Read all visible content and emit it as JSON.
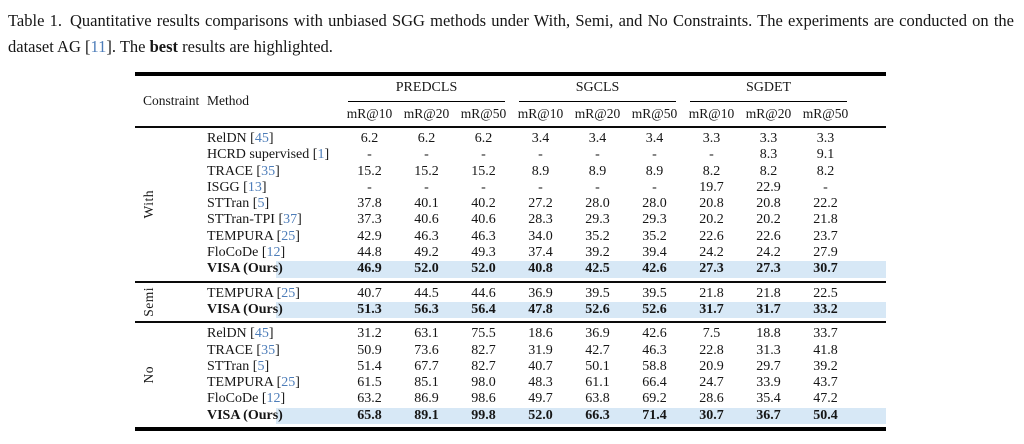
{
  "caption": {
    "label": "Table 1.",
    "text_before_cite": "Quantitative results comparisons with unbiased SGG methods under With, Semi, and No Constraints.  The experiments are conducted on the dataset AG",
    "cite": "11",
    "text_after_cite": ". The",
    "bold_word": "best",
    "text_end": "results are highlighted."
  },
  "colors": {
    "highlight": "#d7e8f6",
    "cite_blue": "#4d7db9"
  },
  "table": {
    "header": {
      "constraint": "Constraint",
      "method": "Method",
      "task_groups": [
        "PREDCLS",
        "SGCLS",
        "SGDET"
      ],
      "metrics": [
        "mR@10",
        "mR@20",
        "mR@50"
      ]
    },
    "groups": [
      {
        "constraint": "With",
        "rows": [
          {
            "method": "RelDN",
            "cite": "45",
            "highlight": false,
            "values": [
              "6.2",
              "6.2",
              "6.2",
              "3.4",
              "3.4",
              "3.4",
              "3.3",
              "3.3",
              "3.3"
            ]
          },
          {
            "method": "HCRD supervised",
            "cite": "1",
            "highlight": false,
            "values": [
              "-",
              "-",
              "-",
              "-",
              "-",
              "-",
              "-",
              "8.3",
              "9.1"
            ]
          },
          {
            "method": "TRACE",
            "cite": "35",
            "highlight": false,
            "values": [
              "15.2",
              "15.2",
              "15.2",
              "8.9",
              "8.9",
              "8.9",
              "8.2",
              "8.2",
              "8.2"
            ]
          },
          {
            "method": "ISGG",
            "cite": "13",
            "highlight": false,
            "values": [
              "-",
              "-",
              "-",
              "-",
              "-",
              "-",
              "19.7",
              "22.9",
              "-"
            ]
          },
          {
            "method": "STTran",
            "cite": "5",
            "highlight": false,
            "values": [
              "37.8",
              "40.1",
              "40.2",
              "27.2",
              "28.0",
              "28.0",
              "20.8",
              "20.8",
              "22.2"
            ]
          },
          {
            "method": "STTran-TPI",
            "cite": "37",
            "highlight": false,
            "values": [
              "37.3",
              "40.6",
              "40.6",
              "28.3",
              "29.3",
              "29.3",
              "20.2",
              "20.2",
              "21.8"
            ]
          },
          {
            "method": "TEMPURA",
            "cite": "25",
            "highlight": false,
            "values": [
              "42.9",
              "46.3",
              "46.3",
              "34.0",
              "35.2",
              "35.2",
              "22.6",
              "22.6",
              "23.7"
            ]
          },
          {
            "method": "FloCoDe",
            "cite": "12",
            "highlight": false,
            "values": [
              "44.8",
              "49.2",
              "49.3",
              "37.4",
              "39.2",
              "39.4",
              "24.2",
              "24.2",
              "27.9"
            ]
          },
          {
            "method": "VISA (Ours)",
            "cite": null,
            "highlight": true,
            "values": [
              "46.9",
              "52.0",
              "52.0",
              "40.8",
              "42.5",
              "42.6",
              "27.3",
              "27.3",
              "30.7"
            ]
          }
        ]
      },
      {
        "constraint": "Semi",
        "rows": [
          {
            "method": "TEMPURA",
            "cite": "25",
            "highlight": false,
            "values": [
              "40.7",
              "44.5",
              "44.6",
              "36.9",
              "39.5",
              "39.5",
              "21.8",
              "21.8",
              "22.5"
            ]
          },
          {
            "method": "VISA (Ours)",
            "cite": null,
            "highlight": true,
            "values": [
              "51.3",
              "56.3",
              "56.4",
              "47.8",
              "52.6",
              "52.6",
              "31.7",
              "31.7",
              "33.2"
            ]
          }
        ]
      },
      {
        "constraint": "No",
        "rows": [
          {
            "method": "RelDN",
            "cite": "45",
            "highlight": false,
            "values": [
              "31.2",
              "63.1",
              "75.5",
              "18.6",
              "36.9",
              "42.6",
              "7.5",
              "18.8",
              "33.7"
            ]
          },
          {
            "method": "TRACE",
            "cite": "35",
            "highlight": false,
            "values": [
              "50.9",
              "73.6",
              "82.7",
              "31.9",
              "42.7",
              "46.3",
              "22.8",
              "31.3",
              "41.8"
            ]
          },
          {
            "method": "STTran",
            "cite": "5",
            "highlight": false,
            "values": [
              "51.4",
              "67.7",
              "82.7",
              "40.7",
              "50.1",
              "58.8",
              "20.9",
              "29.7",
              "39.2"
            ]
          },
          {
            "method": "TEMPURA",
            "cite": "25",
            "highlight": false,
            "values": [
              "61.5",
              "85.1",
              "98.0",
              "48.3",
              "61.1",
              "66.4",
              "24.7",
              "33.9",
              "43.7"
            ]
          },
          {
            "method": "FloCoDe",
            "cite": "12",
            "highlight": false,
            "values": [
              "63.2",
              "86.9",
              "98.6",
              "49.7",
              "63.8",
              "69.2",
              "28.6",
              "35.4",
              "47.2"
            ]
          },
          {
            "method": "VISA (Ours)",
            "cite": null,
            "highlight": true,
            "values": [
              "65.8",
              "89.1",
              "99.8",
              "52.0",
              "66.3",
              "71.4",
              "30.7",
              "36.7",
              "50.4"
            ]
          }
        ]
      }
    ]
  }
}
